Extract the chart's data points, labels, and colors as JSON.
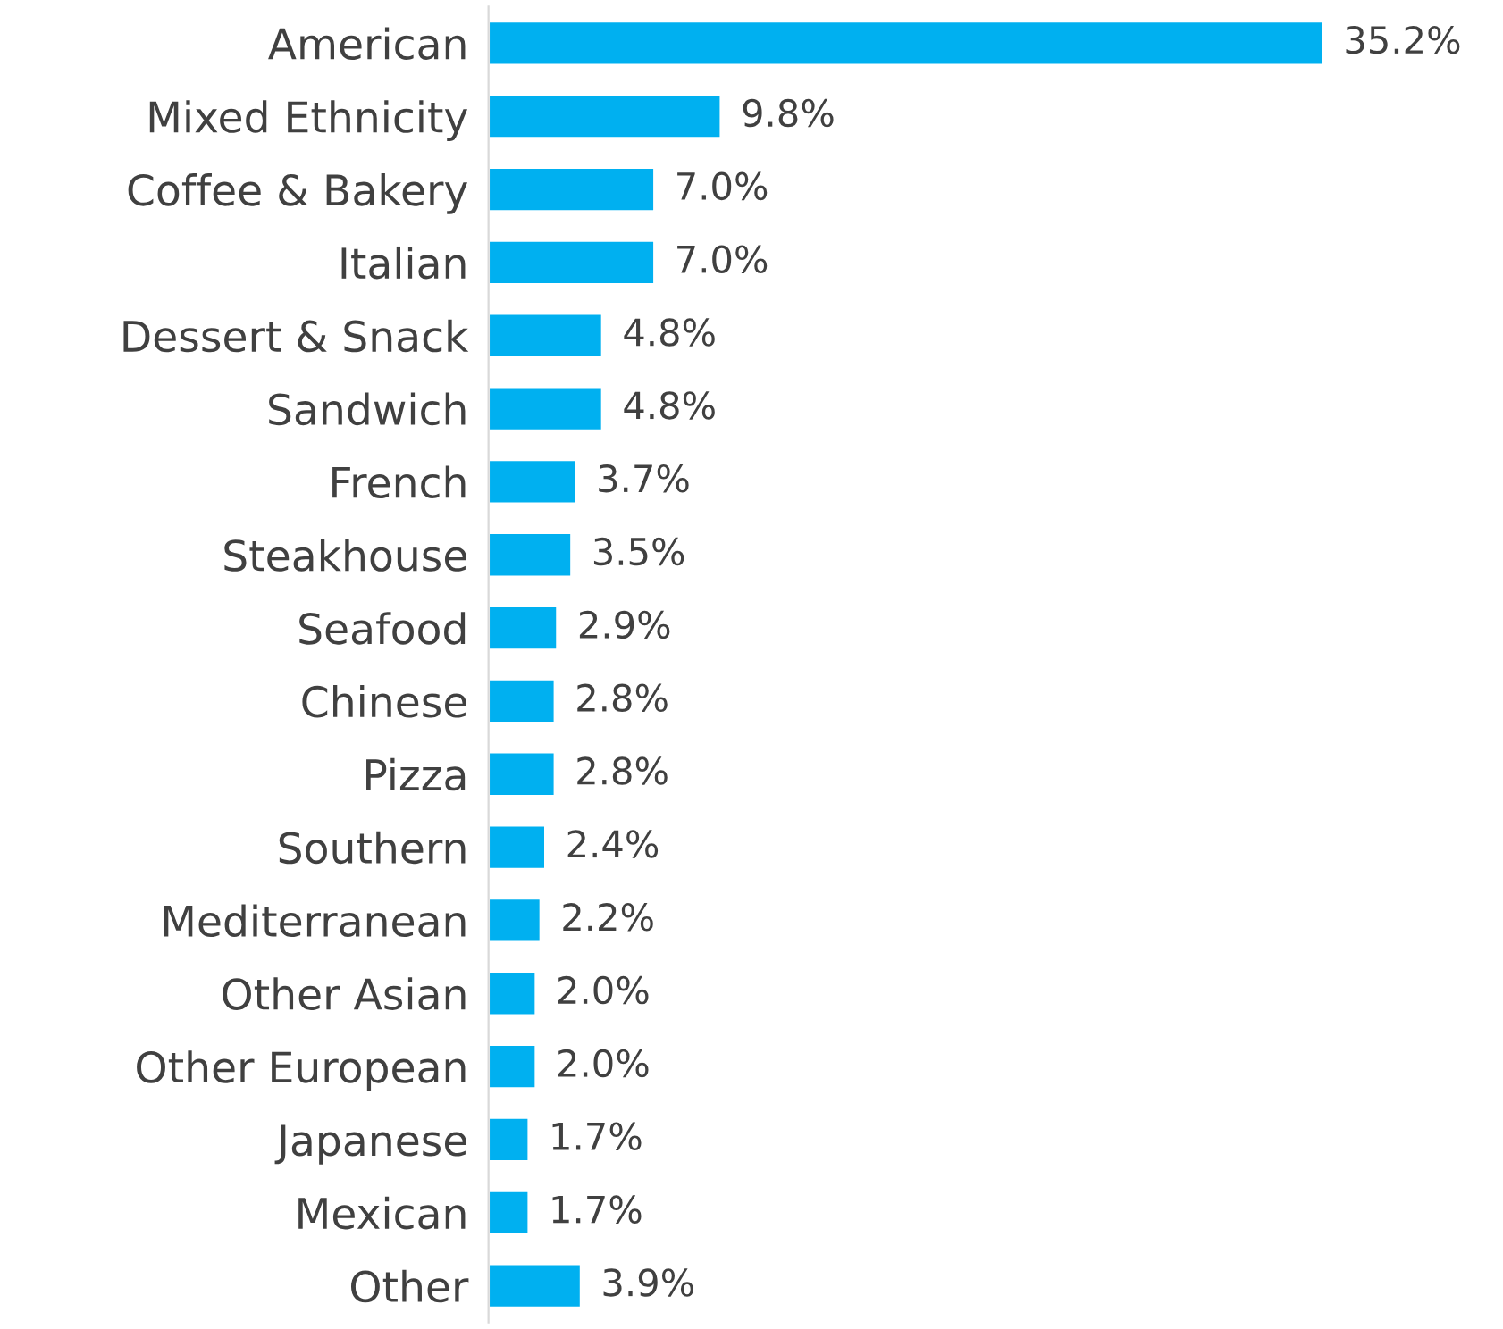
{
  "chart_data": {
    "type": "bar",
    "orientation": "horizontal",
    "categories": [
      "American",
      "Mixed Ethnicity",
      "Coffee & Bakery",
      "Italian",
      "Dessert & Snack",
      "Sandwich",
      "French",
      "Steakhouse",
      "Seafood",
      "Chinese",
      "Pizza",
      "Southern",
      "Mediterranean",
      "Other Asian",
      "Other European",
      "Japanese",
      "Mexican",
      "Other"
    ],
    "values": [
      35.2,
      9.8,
      7.0,
      7.0,
      4.8,
      4.8,
      3.7,
      3.5,
      2.9,
      2.8,
      2.8,
      2.4,
      2.2,
      2.0,
      2.0,
      1.7,
      1.7,
      3.9
    ],
    "value_labels": [
      "35.2%",
      "9.8%",
      "7.0%",
      "7.0%",
      "4.8%",
      "4.8%",
      "3.7%",
      "3.5%",
      "2.9%",
      "2.8%",
      "2.8%",
      "2.4%",
      "2.2%",
      "2.0%",
      "2.0%",
      "1.7%",
      "1.7%",
      "3.9%"
    ],
    "color": "#00b0f0",
    "grid": false,
    "legend": false
  }
}
